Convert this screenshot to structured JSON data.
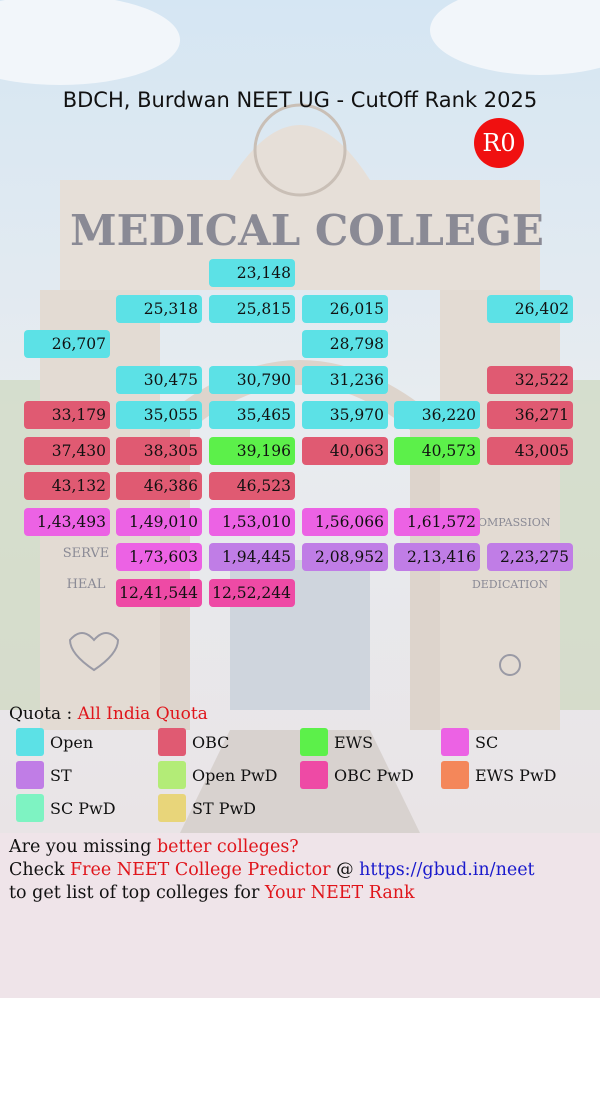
{
  "header": {
    "title": "BDCH, Burdwan NEET UG - CutOff Rank 2025",
    "round": "R0"
  },
  "background_texts": {
    "sign": "MEDICAL COLLEGE",
    "left": [
      "SERVE",
      "HEAL"
    ],
    "right": [
      "COMPASSION",
      "DEDICATION"
    ]
  },
  "grid": {
    "rows": [
      [
        null,
        null,
        {
          "text": "23,148",
          "quota": "Open"
        },
        null,
        null,
        null
      ],
      [
        null,
        {
          "text": "25,318",
          "quota": "Open"
        },
        {
          "text": "25,815",
          "quota": "Open"
        },
        {
          "text": "26,015",
          "quota": "Open"
        },
        null,
        {
          "text": "26,402",
          "quota": "Open"
        }
      ],
      [
        {
          "text": "26,707",
          "quota": "Open"
        },
        null,
        null,
        {
          "text": "28,798",
          "quota": "Open"
        },
        null,
        null
      ],
      [
        null,
        {
          "text": "30,475",
          "quota": "Open"
        },
        {
          "text": "30,790",
          "quota": "Open"
        },
        {
          "text": "31,236",
          "quota": "Open"
        },
        null,
        {
          "text": "32,522",
          "quota": "OBC"
        }
      ],
      [
        {
          "text": "33,179",
          "quota": "OBC"
        },
        {
          "text": "35,055",
          "quota": "Open"
        },
        {
          "text": "35,465",
          "quota": "Open"
        },
        {
          "text": "35,970",
          "quota": "Open"
        },
        {
          "text": "36,220",
          "quota": "Open"
        },
        {
          "text": "36,271",
          "quota": "OBC"
        }
      ],
      [
        {
          "text": "37,430",
          "quota": "OBC"
        },
        {
          "text": "38,305",
          "quota": "OBC"
        },
        {
          "text": "39,196",
          "quota": "EWS"
        },
        {
          "text": "40,063",
          "quota": "OBC"
        },
        {
          "text": "40,573",
          "quota": "EWS"
        },
        {
          "text": "43,005",
          "quota": "OBC"
        }
      ],
      [
        {
          "text": "43,132",
          "quota": "OBC"
        },
        {
          "text": "46,386",
          "quota": "OBC"
        },
        {
          "text": "46,523",
          "quota": "OBC"
        },
        null,
        null,
        null
      ],
      [
        {
          "text": "1,43,493",
          "quota": "SC"
        },
        {
          "text": "1,49,010",
          "quota": "SC"
        },
        {
          "text": "1,53,010",
          "quota": "SC"
        },
        {
          "text": "1,56,066",
          "quota": "SC"
        },
        {
          "text": "1,61,572",
          "quota": "SC"
        },
        null
      ],
      [
        null,
        {
          "text": "1,73,603",
          "quota": "SC"
        },
        {
          "text": "1,94,445",
          "quota": "ST"
        },
        {
          "text": "2,08,952",
          "quota": "ST"
        },
        {
          "text": "2,13,416",
          "quota": "ST"
        },
        {
          "text": "2,23,275",
          "quota": "ST"
        }
      ],
      [
        null,
        {
          "text": "12,41,544",
          "quota": "OBC PwD"
        },
        {
          "text": "12,52,244",
          "quota": "OBC PwD"
        },
        null,
        null,
        null
      ]
    ]
  },
  "quota": {
    "label": "Quota : ",
    "value": "All India Quota"
  },
  "legend": [
    {
      "name": "Open",
      "color": "#5ce1e6"
    },
    {
      "name": "OBC",
      "color": "#e05a72"
    },
    {
      "name": "EWS",
      "color": "#5cf04a"
    },
    {
      "name": "SC",
      "color": "#ec62e4"
    },
    {
      "name": "ST",
      "color": "#c07de6"
    },
    {
      "name": "Open PwD",
      "color": "#b3ec77"
    },
    {
      "name": "OBC PwD",
      "color": "#ee4aa5"
    },
    {
      "name": "EWS PwD",
      "color": "#f4875a"
    },
    {
      "name": "SC PwD",
      "color": "#7ef3c2"
    },
    {
      "name": "ST PwD",
      "color": "#e8d57a"
    }
  ],
  "footer": {
    "lines": [
      [
        {
          "text": "Are you missing ",
          "color": "#111111"
        },
        {
          "text": "better colleges?",
          "color": "#e0151b"
        }
      ],
      [
        {
          "text": "Check ",
          "color": "#111111"
        },
        {
          "text": "Free NEET College Predictor",
          "color": "#e0151b"
        },
        {
          "text": " @ ",
          "color": "#111111"
        },
        {
          "text": "https://gbud.in/neet",
          "color": "#1a1acc"
        }
      ],
      [
        {
          "text": "to get list of top colleges for ",
          "color": "#111111"
        },
        {
          "text": "Your NEET Rank",
          "color": "#e0151b"
        }
      ]
    ]
  }
}
